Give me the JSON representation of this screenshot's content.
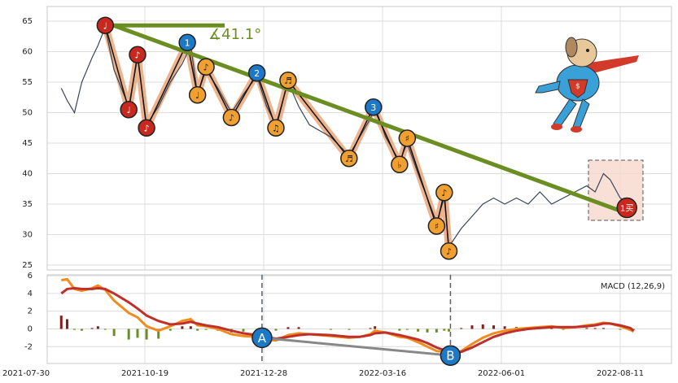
{
  "chart_data": [
    {
      "type": "line",
      "ylim": [
        24.2,
        67.4
      ],
      "yticks": [
        25,
        30,
        35,
        40,
        45,
        50,
        55,
        60,
        65
      ],
      "xlim": [
        "2021-07-30",
        "2022-08-25"
      ],
      "xticks": [
        "2021-07-30",
        "2021-10-19",
        "2021-12-28",
        "2022-03-16",
        "2022-06-01",
        "2022-08-11"
      ],
      "grid": true,
      "x": [
        "2021-08-23",
        "2021-08-27",
        "2021-09-01",
        "2021-09-06",
        "2021-09-13",
        "2021-09-17",
        "2021-09-22",
        "2021-09-28",
        "2021-10-08",
        "2021-10-14",
        "2021-10-20",
        "2021-10-27",
        "2021-11-03",
        "2021-11-10",
        "2021-11-15",
        "2021-11-19",
        "2021-11-24",
        "2021-12-01",
        "2021-12-09",
        "2021-12-16",
        "2021-12-24",
        "2021-12-30",
        "2022-01-05",
        "2022-01-13",
        "2022-01-20",
        "2022-01-27",
        "2022-02-10",
        "2022-02-22",
        "2022-03-01",
        "2022-03-08",
        "2022-03-11",
        "2022-03-18",
        "2022-03-27",
        "2022-04-01",
        "2022-04-08",
        "2022-04-14",
        "2022-04-20",
        "2022-04-25",
        "2022-04-28",
        "2022-05-06",
        "2022-05-13",
        "2022-05-20",
        "2022-05-27",
        "2022-06-03",
        "2022-06-10",
        "2022-06-17",
        "2022-06-24",
        "2022-07-01",
        "2022-07-08",
        "2022-07-15",
        "2022-07-22",
        "2022-07-27",
        "2022-08-01",
        "2022-08-05",
        "2022-08-11",
        "2022-08-17",
        "2022-08-19"
      ],
      "series": [
        {
          "color": "#3a4458",
          "values": [
            54,
            52,
            50,
            55,
            59,
            61,
            64,
            57,
            51,
            59,
            48,
            51,
            55,
            58,
            61,
            53,
            57,
            54,
            50,
            53,
            56,
            51,
            48,
            55,
            51,
            48,
            46,
            43,
            46,
            49,
            51,
            46,
            42,
            45,
            40,
            36,
            32,
            36,
            28,
            31,
            33,
            35,
            36,
            35,
            36,
            35,
            37,
            35,
            36,
            37,
            38,
            37,
            40,
            39,
            36,
            35,
            35
          ]
        }
      ],
      "zigzag": {
        "color": "#e8a070",
        "points": [
          {
            "date": "2021-09-22",
            "value": 64.3,
            "label": "♩",
            "color": "#c8281e"
          },
          {
            "date": "2021-10-08",
            "value": 50.5,
            "label": "♩",
            "color": "#c8281e"
          },
          {
            "date": "2021-10-14",
            "value": 59.5,
            "label": "♪",
            "color": "#c8281e"
          },
          {
            "date": "2021-10-20",
            "value": 47.5,
            "label": "♪",
            "color": "#c8281e"
          },
          {
            "date": "2021-11-13",
            "value": 61.5,
            "label": "1",
            "color": "#1e78c8"
          },
          {
            "date": "2021-11-19",
            "value": 52.9,
            "label": "♩",
            "color": "#f0a030"
          },
          {
            "date": "2021-11-24",
            "value": 57.5,
            "label": "♪",
            "color": "#f0a030"
          },
          {
            "date": "2021-12-09",
            "value": 49.2,
            "label": "♪",
            "color": "#f0a030"
          },
          {
            "date": "2021-12-24",
            "value": 56.5,
            "label": "2",
            "color": "#1e78c8"
          },
          {
            "date": "2022-01-05",
            "value": 47.5,
            "label": "♫",
            "color": "#f0a030"
          },
          {
            "date": "2022-01-13",
            "value": 55.3,
            "label": "♬",
            "color": "#f0a030"
          },
          {
            "date": "2022-02-22",
            "value": 42.5,
            "label": "♬",
            "color": "#f0a030"
          },
          {
            "date": "2022-03-10",
            "value": 50.9,
            "label": "3",
            "color": "#1e78c8"
          },
          {
            "date": "2022-03-27",
            "value": 41.5,
            "label": "♭",
            "color": "#f0a030"
          },
          {
            "date": "2022-04-01",
            "value": 45.8,
            "label": "♯",
            "color": "#f0a030"
          },
          {
            "date": "2022-04-20",
            "value": 31.4,
            "label": "♯",
            "color": "#f0a030"
          },
          {
            "date": "2022-04-25",
            "value": 36.9,
            "label": "♪",
            "color": "#f0a030"
          },
          {
            "date": "2022-04-28",
            "value": 27.3,
            "label": "♪",
            "color": "#f0a030"
          }
        ]
      },
      "trend_line": {
        "color": "#6b8e23",
        "from": {
          "date": "2021-09-22",
          "value": 64.8
        },
        "to": {
          "date": "2022-08-17",
          "value": 33.3
        }
      },
      "level_line": {
        "color": "#6b8e23",
        "from": {
          "date": "2021-09-22",
          "value": 64.3
        },
        "to": {
          "date": "2021-12-05",
          "value": 64.3
        }
      },
      "angle_label": "∡41.1°",
      "buy_marker": {
        "date": "2022-08-15",
        "value": 34.4,
        "label": "1买",
        "color": "#c8281e"
      }
    },
    {
      "type": "line",
      "title": "MACD (12,26,9)",
      "ylim": [
        -3.9,
        6.1
      ],
      "yticks": [
        -2,
        0,
        2,
        4,
        6
      ],
      "x": [
        "2021-08-23",
        "2021-08-27",
        "2021-09-01",
        "2021-09-06",
        "2021-09-13",
        "2021-09-17",
        "2021-09-22",
        "2021-09-28",
        "2021-10-08",
        "2021-10-14",
        "2021-10-20",
        "2021-10-27",
        "2021-11-03",
        "2021-11-10",
        "2021-11-15",
        "2021-11-19",
        "2021-11-24",
        "2021-12-01",
        "2021-12-09",
        "2021-12-16",
        "2021-12-24",
        "2021-12-30",
        "2022-01-05",
        "2022-01-13",
        "2022-01-20",
        "2022-01-27",
        "2022-02-10",
        "2022-02-22",
        "2022-03-01",
        "2022-03-08",
        "2022-03-11",
        "2022-03-18",
        "2022-03-27",
        "2022-04-01",
        "2022-04-08",
        "2022-04-14",
        "2022-04-20",
        "2022-04-25",
        "2022-04-28",
        "2022-05-06",
        "2022-05-13",
        "2022-05-20",
        "2022-05-27",
        "2022-06-03",
        "2022-06-10",
        "2022-06-17",
        "2022-06-24",
        "2022-07-01",
        "2022-07-08",
        "2022-07-15",
        "2022-07-22",
        "2022-07-27",
        "2022-08-01",
        "2022-08-05",
        "2022-08-11",
        "2022-08-17",
        "2022-08-19"
      ],
      "series": [
        {
          "color": "#f08c1e",
          "values": [
            5.5,
            5.6,
            4.5,
            4.3,
            4.6,
            4.9,
            4.4,
            3.2,
            1.8,
            1.3,
            0.3,
            -0.2,
            0.3,
            0.9,
            1.1,
            0.4,
            0.3,
            0,
            -0.6,
            -0.8,
            -0.9,
            -1.2,
            -1.3,
            -0.7,
            -0.5,
            -0.6,
            -0.8,
            -1.0,
            -0.9,
            -0.6,
            -0.2,
            -0.4,
            -0.9,
            -1.0,
            -1.5,
            -2.0,
            -2.5,
            -2.6,
            -3.0,
            -2.5,
            -1.7,
            -1.0,
            -0.5,
            -0.2,
            0,
            0.1,
            0.2,
            0.3,
            0.1,
            0.2,
            0.4,
            0.5,
            0.7,
            0.6,
            0.3,
            -0.1,
            -0.3
          ]
        },
        {
          "color": "#c0302a",
          "values": [
            4.0,
            4.5,
            4.6,
            4.5,
            4.5,
            4.6,
            4.5,
            4.0,
            3.0,
            2.3,
            1.5,
            0.9,
            0.5,
            0.6,
            0.8,
            0.6,
            0.4,
            0.2,
            -0.2,
            -0.5,
            -0.7,
            -0.9,
            -1.1,
            -0.9,
            -0.7,
            -0.6,
            -0.7,
            -0.9,
            -0.9,
            -0.7,
            -0.5,
            -0.4,
            -0.7,
            -0.9,
            -1.2,
            -1.6,
            -2.1,
            -2.4,
            -2.7,
            -2.6,
            -2.1,
            -1.5,
            -0.9,
            -0.5,
            -0.2,
            0,
            0.1,
            0.2,
            0.2,
            0.2,
            0.3,
            0.4,
            0.6,
            0.6,
            0.4,
            0.1,
            -0.2
          ]
        }
      ],
      "bars": {
        "positive_color": "#8b1a1a",
        "negative_color": "#6b8e23",
        "values": [
          1.5,
          1.1,
          -0.1,
          -0.2,
          0.1,
          0.3,
          -0.1,
          -0.8,
          -1.2,
          -1.0,
          -1.2,
          -1.1,
          -0.2,
          0.3,
          0.3,
          -0.2,
          -0.1,
          -0.2,
          -0.4,
          -0.3,
          -0.2,
          -0.3,
          -0.2,
          0.2,
          0.2,
          0,
          -0.1,
          -0.1,
          0,
          0.1,
          0.3,
          0,
          -0.2,
          -0.1,
          -0.3,
          -0.4,
          -0.4,
          -0.2,
          -0.3,
          0.1,
          0.4,
          0.5,
          0.4,
          0.3,
          0.2,
          0.1,
          0.1,
          0.1,
          -0.1,
          0,
          0.1,
          0.1,
          0.1,
          0,
          -0.1,
          -0.2,
          -0.1
        ]
      },
      "divergence": {
        "color": "#888888",
        "points": [
          {
            "date": "2021-12-27",
            "value": -1.0,
            "label": "A",
            "color": "#1e78c8"
          },
          {
            "date": "2022-04-29",
            "value": -3.0,
            "label": "B",
            "color": "#1e78c8"
          }
        ]
      }
    }
  ]
}
